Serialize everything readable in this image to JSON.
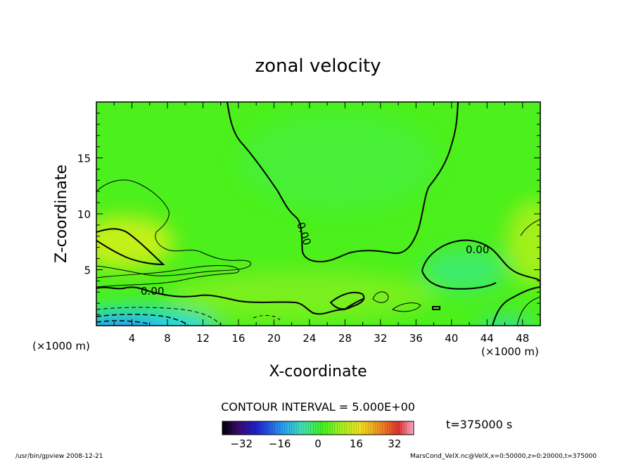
{
  "chart_data": {
    "type": "heatmap",
    "title": "zonal velocity",
    "xlabel": "X-coordinate",
    "ylabel": "Z-coordinate",
    "x_unit": "(×1000 m)",
    "y_unit": "(×1000 m)",
    "xlim": [
      0,
      50
    ],
    "ylim": [
      0,
      20
    ],
    "x_ticks": [
      "4",
      "8",
      "12",
      "16",
      "20",
      "24",
      "28",
      "32",
      "36",
      "40",
      "44",
      "48"
    ],
    "y_ticks": [
      "5",
      "10",
      "15"
    ],
    "contour_interval_text": "CONTOUR INTERVAL = 5.000E+00",
    "contour_labels": [
      "0.00",
      "0.00",
      "0.00"
    ],
    "colorbar": {
      "range": [
        -40,
        40
      ],
      "ticks": [
        "-32",
        "-16",
        "0",
        "16",
        "32"
      ],
      "colormap": "rainbow"
    },
    "time_label": "t=375000 s",
    "field_notes": {
      "background_value": 0,
      "positive_max_region": "x≈3-8, z≈6-9 (yellow, ~+8)",
      "negative_min_region": "x≈0-8, z≈0-1 (blue, ~-15)"
    }
  },
  "footer": {
    "left": "/usr/bin/gpview   2008-12-21",
    "right": "MarsCond_VelX.nc@VelX,x=0:50000,z=0:20000,t=375000"
  },
  "colors": {
    "green": "#4cf01c",
    "yellow": "#d8f018",
    "cyan": "#20d8e8",
    "blue": "#2a78f0"
  }
}
